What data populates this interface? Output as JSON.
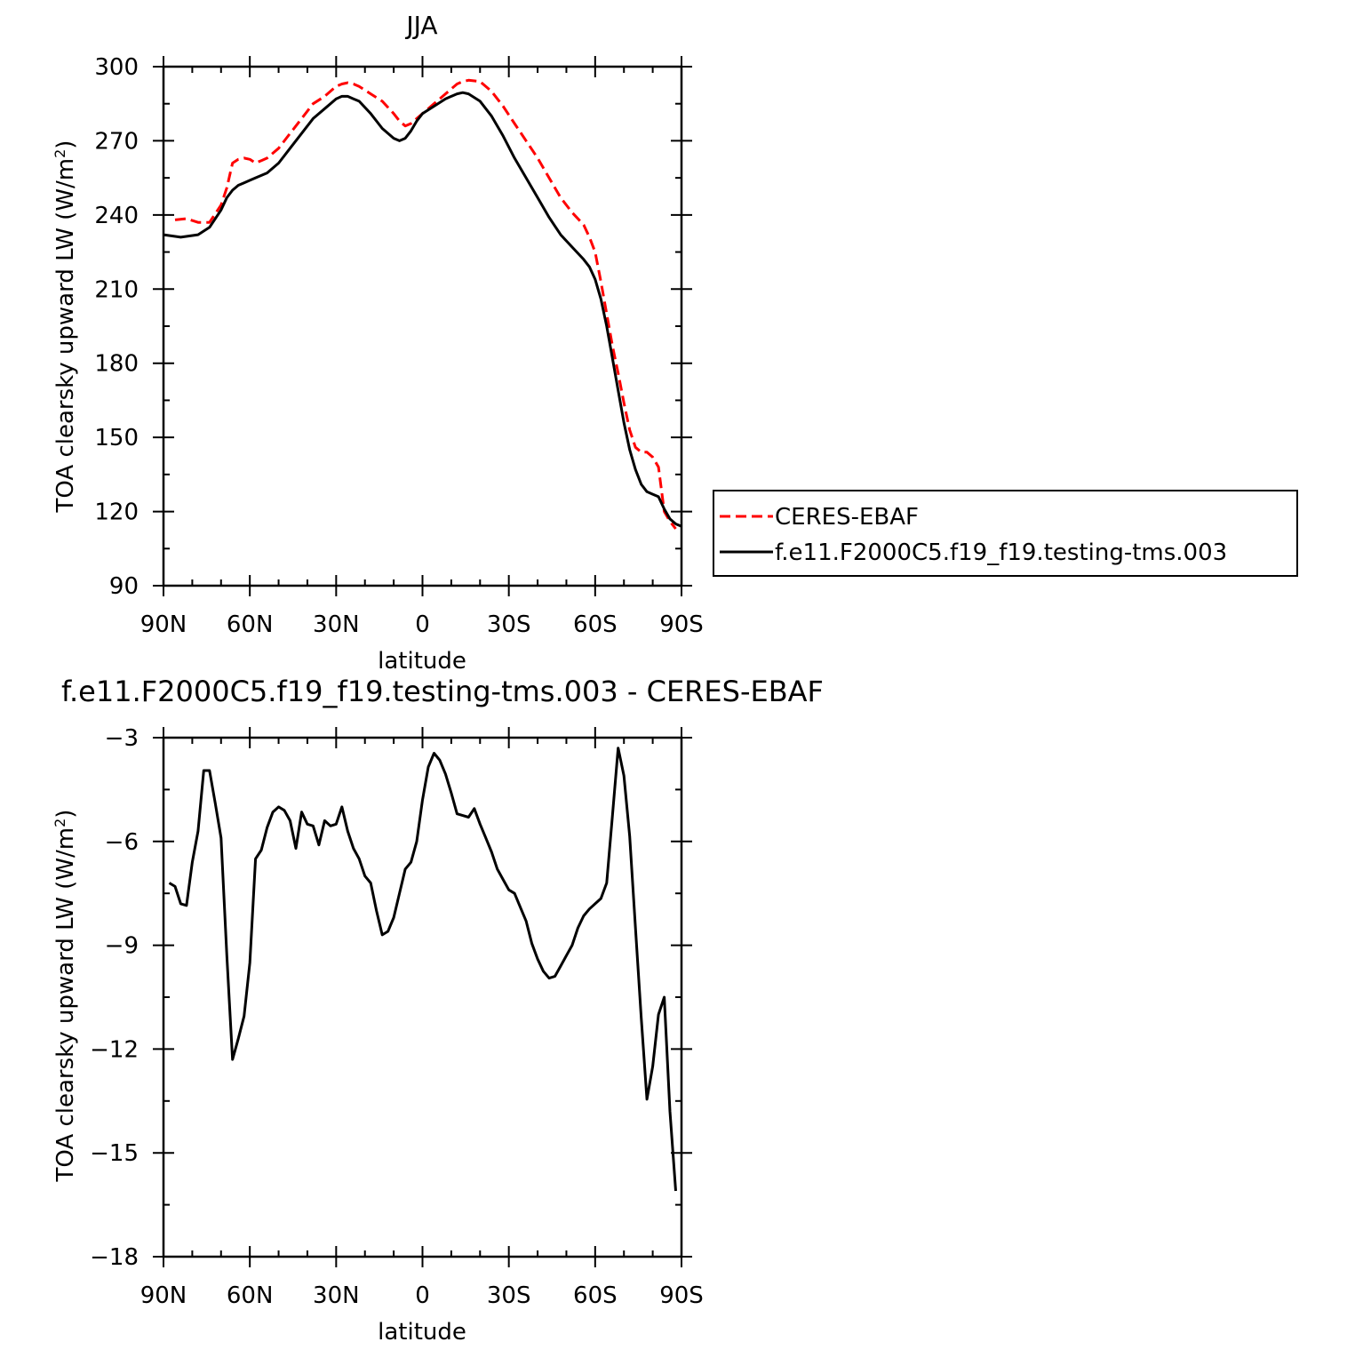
{
  "chart_data": [
    {
      "type": "line",
      "title": "JJA",
      "xlabel": "latitude",
      "ylabel": "TOA clearsky upward LW (W/m²)",
      "ylabel_main": "TOA clearsky upward LW (W/m",
      "ylabel_sup": "2",
      "ylabel_end": ")",
      "xlim": [
        90,
        -90
      ],
      "ylim": [
        90,
        300
      ],
      "xticks": [
        {
          "v": 90,
          "label": "90N"
        },
        {
          "v": 60,
          "label": "60N"
        },
        {
          "v": 30,
          "label": "30N"
        },
        {
          "v": 0,
          "label": "0"
        },
        {
          "v": -30,
          "label": "30S"
        },
        {
          "v": -60,
          "label": "60S"
        },
        {
          "v": -90,
          "label": "90S"
        }
      ],
      "yticks": [
        {
          "v": 90,
          "label": "90"
        },
        {
          "v": 120,
          "label": "120"
        },
        {
          "v": 150,
          "label": "150"
        },
        {
          "v": 180,
          "label": "180"
        },
        {
          "v": 210,
          "label": "210"
        },
        {
          "v": 240,
          "label": "240"
        },
        {
          "v": 270,
          "label": "270"
        },
        {
          "v": 300,
          "label": "300"
        }
      ],
      "legend": "outside-right",
      "series": [
        {
          "name": "CERES-EBAF",
          "color": "#ff0000",
          "dash": true,
          "x": [
            86,
            82,
            78,
            74,
            70,
            68,
            66,
            64,
            62,
            60,
            58,
            56,
            54,
            50,
            46,
            42,
            38,
            34,
            30,
            28,
            26,
            24,
            22,
            18,
            14,
            10,
            8,
            6,
            4,
            2,
            0,
            -4,
            -8,
            -12,
            -14,
            -16,
            -20,
            -24,
            -28,
            -32,
            -36,
            -40,
            -44,
            -48,
            -52,
            -56,
            -58,
            -60,
            -62,
            -64,
            -66,
            -68,
            -70,
            -72,
            -74,
            -76,
            -78,
            -80,
            -82,
            -84,
            -86,
            -88
          ],
          "y": [
            238,
            238.5,
            237,
            237,
            244,
            251,
            261,
            262.5,
            263,
            262.5,
            261,
            262,
            263,
            267,
            273,
            279,
            285,
            288,
            292,
            293,
            293.5,
            293,
            292,
            289,
            286,
            281,
            278,
            276,
            277,
            279,
            281,
            285,
            289,
            293,
            294,
            294.5,
            294,
            290,
            284,
            277,
            270,
            263,
            255,
            247,
            241,
            236,
            231,
            225,
            213,
            200,
            187,
            176,
            164,
            153,
            146,
            144,
            144,
            142,
            138,
            120,
            116,
            113
          ]
        },
        {
          "name": "f.e11.F2000C5.f19_f19.testing-tms.003",
          "color": "#000000",
          "dash": false,
          "x": [
            90,
            84,
            78,
            74,
            70,
            68,
            66,
            64,
            62,
            60,
            58,
            56,
            54,
            50,
            46,
            42,
            38,
            34,
            30,
            28,
            26,
            24,
            22,
            18,
            14,
            10,
            8,
            6,
            4,
            2,
            0,
            -4,
            -8,
            -12,
            -14,
            -16,
            -20,
            -24,
            -28,
            -32,
            -36,
            -40,
            -44,
            -48,
            -52,
            -56,
            -58,
            -60,
            -62,
            -64,
            -66,
            -68,
            -70,
            -72,
            -74,
            -76,
            -78,
            -80,
            -82,
            -84,
            -86,
            -88,
            -90
          ],
          "y": [
            232,
            231,
            232,
            235,
            242,
            247,
            250,
            252,
            253,
            254,
            255,
            256,
            257,
            261,
            267,
            273,
            279,
            283,
            287,
            288,
            288,
            287,
            286,
            281,
            275,
            271,
            270,
            271,
            274,
            278,
            281,
            284,
            287,
            289,
            289.5,
            289,
            286,
            280,
            272,
            263,
            255,
            247,
            239,
            232,
            227,
            222,
            219,
            214,
            206,
            195,
            182,
            169,
            156,
            145,
            137,
            131,
            128,
            127,
            126,
            121,
            117,
            115,
            114
          ]
        }
      ]
    },
    {
      "type": "line",
      "title": "f.e11.F2000C5.f19_f19.testing-tms.003 - CERES-EBAF",
      "xlabel": "latitude",
      "ylabel": "TOA clearsky upward LW (W/m²)",
      "ylabel_main": "TOA clearsky upward LW (W/m",
      "ylabel_sup": "2",
      "ylabel_end": ")",
      "xlim": [
        90,
        -90
      ],
      "ylim": [
        -18,
        -3
      ],
      "xticks": [
        {
          "v": 90,
          "label": "90N"
        },
        {
          "v": 60,
          "label": "60N"
        },
        {
          "v": 30,
          "label": "30N"
        },
        {
          "v": 0,
          "label": "0"
        },
        {
          "v": -30,
          "label": "30S"
        },
        {
          "v": -60,
          "label": "60S"
        },
        {
          "v": -90,
          "label": "90S"
        }
      ],
      "yticks": [
        {
          "v": -3,
          "label": "−3"
        },
        {
          "v": -6,
          "label": "−6"
        },
        {
          "v": -9,
          "label": "−9"
        },
        {
          "v": -12,
          "label": "−12"
        },
        {
          "v": -15,
          "label": "−15"
        },
        {
          "v": -18,
          "label": "−18"
        }
      ],
      "series": [
        {
          "color": "#000000",
          "dash": false,
          "x": [
            88,
            86,
            84,
            82,
            80,
            78,
            76,
            74,
            72,
            70,
            68,
            66,
            64,
            62,
            60,
            58,
            56,
            54,
            52,
            50,
            48,
            46,
            44,
            42,
            40,
            38,
            36,
            34,
            32,
            30,
            28,
            26,
            24,
            22,
            20,
            18,
            16,
            14,
            12,
            10,
            8,
            6,
            4,
            2,
            0,
            -2,
            -4,
            -6,
            -8,
            -10,
            -12,
            -14,
            -16,
            -18,
            -20,
            -22,
            -24,
            -26,
            -28,
            -30,
            -32,
            -34,
            -36,
            -38,
            -40,
            -42,
            -44,
            -46,
            -48,
            -50,
            -52,
            -54,
            -56,
            -58,
            -60,
            -62,
            -64,
            -66,
            -68,
            -70,
            -72,
            -74,
            -76,
            -78,
            -80,
            -82,
            -84,
            -86,
            -88
          ],
          "y": [
            -7.2,
            -7.3,
            -7.8,
            -7.85,
            -6.6,
            -5.7,
            -3.95,
            -3.95,
            -4.9,
            -5.9,
            -9.3,
            -12.3,
            -11.7,
            -11.05,
            -9.5,
            -6.5,
            -6.25,
            -5.6,
            -5.15,
            -5.0,
            -5.1,
            -5.4,
            -6.2,
            -5.15,
            -5.5,
            -5.55,
            -6.1,
            -5.4,
            -5.55,
            -5.5,
            -5.0,
            -5.7,
            -6.2,
            -6.5,
            -7.0,
            -7.2,
            -8.0,
            -8.7,
            -8.6,
            -8.2,
            -7.5,
            -6.8,
            -6.6,
            -6.0,
            -4.8,
            -3.85,
            -3.45,
            -3.65,
            -4.05,
            -4.6,
            -5.2,
            -5.25,
            -5.3,
            -5.05,
            -5.5,
            -5.9,
            -6.3,
            -6.8,
            -7.1,
            -7.4,
            -7.5,
            -7.9,
            -8.3,
            -8.95,
            -9.4,
            -9.75,
            -9.95,
            -9.9,
            -9.6,
            -9.3,
            -9.0,
            -8.5,
            -8.15,
            -7.95,
            -7.8,
            -7.65,
            -7.2,
            -5.25,
            -3.3,
            -4.1,
            -5.85,
            -8.5,
            -11.1,
            -13.45,
            -12.5,
            -11.0,
            -10.5,
            -13.8,
            -16.1
          ]
        }
      ]
    }
  ]
}
